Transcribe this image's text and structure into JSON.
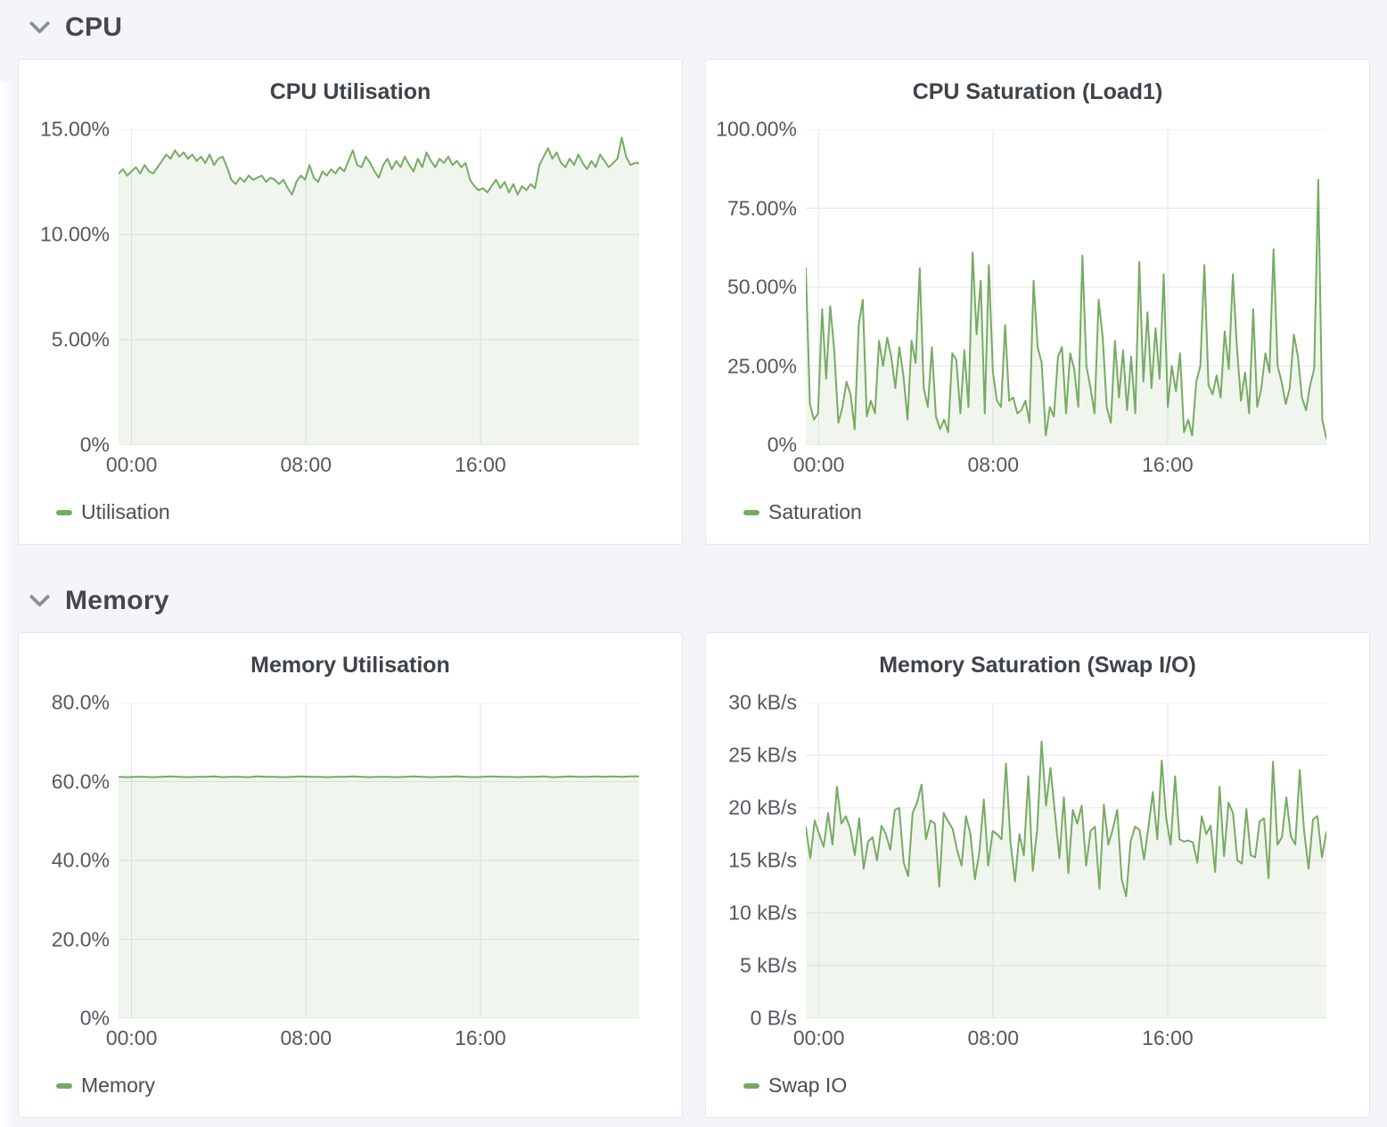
{
  "colors": {
    "page_bg": "#f4f5f9",
    "panel_bg": "#ffffff",
    "panel_border": "#e3e6ec",
    "line": "#77ab63",
    "fill": "rgba(119,171,99,0.11)",
    "grid": "#e4e6e9",
    "title_text": "#3e434b",
    "tick_text": "#54585f",
    "section_text": "#44484e",
    "legend_text": "#4a4e54",
    "chevron": "#8b9097"
  },
  "sections": [
    {
      "title": "CPU",
      "collapsed": false,
      "panel_indexes": [
        0,
        1
      ]
    },
    {
      "title": "Memory",
      "collapsed": false,
      "panel_indexes": [
        2,
        3
      ]
    }
  ],
  "chart_data": [
    {
      "id": "cpu-utilisation",
      "type": "line",
      "title": "CPU Utilisation",
      "unit": "percent",
      "ylim": [
        0,
        15
      ],
      "grid": true,
      "legend_position": "bottom-left",
      "yticks": [
        {
          "label": "15.00%",
          "value": 15
        },
        {
          "label": "10.00%",
          "value": 10
        },
        {
          "label": "5.00%",
          "value": 5
        },
        {
          "label": "0%",
          "value": 0
        }
      ],
      "xticks": [
        {
          "label": "00:00",
          "f": 0.025
        },
        {
          "label": "08:00",
          "f": 0.36
        },
        {
          "label": "16:00",
          "f": 0.695
        }
      ],
      "x_range": "00:00 to ~24:00 (24 h window)",
      "series": [
        {
          "name": "Utilisation",
          "values": [
            12.9,
            13.1,
            12.8,
            13.0,
            13.2,
            12.9,
            13.3,
            13.0,
            12.9,
            13.2,
            13.5,
            13.8,
            13.6,
            14.0,
            13.7,
            13.9,
            13.6,
            13.8,
            13.5,
            13.7,
            13.4,
            13.8,
            13.3,
            13.6,
            13.7,
            13.2,
            12.6,
            12.4,
            12.7,
            12.5,
            12.8,
            12.6,
            12.7,
            12.8,
            12.5,
            12.7,
            12.6,
            12.4,
            12.6,
            12.2,
            11.9,
            12.5,
            12.8,
            12.6,
            13.3,
            12.7,
            12.5,
            13.0,
            12.8,
            13.1,
            12.9,
            13.2,
            13.0,
            13.5,
            14.0,
            13.3,
            13.2,
            13.7,
            13.4,
            13.0,
            12.7,
            13.3,
            13.6,
            13.1,
            13.5,
            13.2,
            13.7,
            13.3,
            13.0,
            13.6,
            13.2,
            13.9,
            13.5,
            13.2,
            13.6,
            13.4,
            13.7,
            13.3,
            13.5,
            13.2,
            13.4,
            12.6,
            12.3,
            12.1,
            12.2,
            12.0,
            12.3,
            12.6,
            12.2,
            12.5,
            12.0,
            12.4,
            11.9,
            12.3,
            12.1,
            12.4,
            12.2,
            13.3,
            13.7,
            14.1,
            13.6,
            13.9,
            13.4,
            13.2,
            13.6,
            13.3,
            13.8,
            13.4,
            13.1,
            13.5,
            13.2,
            13.8,
            13.5,
            13.2,
            13.4,
            13.6,
            14.6,
            13.7,
            13.3,
            13.4,
            13.4
          ]
        }
      ]
    },
    {
      "id": "cpu-saturation",
      "type": "line",
      "title": "CPU Saturation (Load1)",
      "unit": "percent",
      "ylim": [
        0,
        100
      ],
      "grid": true,
      "legend_position": "bottom-left",
      "yticks": [
        {
          "label": "100.00%",
          "value": 100
        },
        {
          "label": "75.00%",
          "value": 75
        },
        {
          "label": "50.00%",
          "value": 50
        },
        {
          "label": "25.00%",
          "value": 25
        },
        {
          "label": "0%",
          "value": 0
        }
      ],
      "xticks": [
        {
          "label": "00:00",
          "f": 0.025
        },
        {
          "label": "08:00",
          "f": 0.36
        },
        {
          "label": "16:00",
          "f": 0.695
        }
      ],
      "x_range": "00:00 to ~24:00 (24 h window)",
      "series": [
        {
          "name": "Saturation",
          "values": [
            56,
            13,
            8,
            10,
            43,
            21,
            44,
            30,
            7,
            12,
            20,
            16,
            5,
            38,
            46,
            9,
            14,
            10,
            33,
            25,
            34,
            28,
            18,
            31,
            22,
            8,
            33,
            26,
            56,
            18,
            12,
            31,
            9,
            5,
            8,
            4,
            29,
            27,
            10,
            30,
            12,
            61,
            35,
            52,
            10,
            57,
            23,
            14,
            12,
            38,
            14,
            15,
            10,
            11,
            14,
            7,
            52,
            31,
            26,
            3,
            12,
            9,
            28,
            31,
            10,
            29,
            24,
            12,
            60,
            25,
            18,
            10,
            46,
            34,
            12,
            7,
            33,
            15,
            30,
            11,
            28,
            10,
            58,
            20,
            42,
            18,
            37,
            21,
            54,
            12,
            25,
            17,
            29,
            4,
            8,
            3,
            20,
            25,
            57,
            19,
            16,
            22,
            15,
            36,
            24,
            54,
            31,
            14,
            23,
            10,
            43,
            12,
            18,
            29,
            23,
            62,
            25,
            20,
            13,
            18,
            35,
            28,
            15,
            11,
            19,
            24,
            84,
            8,
            2
          ]
        }
      ]
    },
    {
      "id": "memory-utilisation",
      "type": "line",
      "title": "Memory Utilisation",
      "unit": "percent",
      "ylim": [
        0,
        80
      ],
      "grid": true,
      "legend_position": "bottom-left",
      "yticks": [
        {
          "label": "80.0%",
          "value": 80
        },
        {
          "label": "60.0%",
          "value": 60
        },
        {
          "label": "40.0%",
          "value": 40
        },
        {
          "label": "20.0%",
          "value": 20
        },
        {
          "label": "0%",
          "value": 0
        }
      ],
      "xticks": [
        {
          "label": "00:00",
          "f": 0.025
        },
        {
          "label": "08:00",
          "f": 0.36
        },
        {
          "label": "16:00",
          "f": 0.695
        }
      ],
      "x_range": "00:00 to ~24:00 (24 h window)",
      "series": [
        {
          "name": "Memory",
          "values": [
            61.2,
            61.1,
            61.2,
            61.2,
            61.1,
            61.2,
            61.3,
            61.2,
            61.1,
            61.2,
            61.2,
            61.3,
            61.1,
            61.2,
            61.2,
            61.1,
            61.3,
            61.2,
            61.2,
            61.1,
            61.2,
            61.3,
            61.2,
            61.2,
            61.1,
            61.2,
            61.2,
            61.3,
            61.2,
            61.1,
            61.2,
            61.2,
            61.1,
            61.2,
            61.3,
            61.2,
            61.1,
            61.2,
            61.2,
            61.3,
            61.2,
            61.1,
            61.2,
            61.3,
            61.2,
            61.2,
            61.1,
            61.2,
            61.2,
            61.3,
            61.1,
            61.2,
            61.3,
            61.2,
            61.2,
            61.3,
            61.2,
            61.3,
            61.2,
            61.3,
            61.3
          ]
        }
      ]
    },
    {
      "id": "memory-saturation",
      "type": "line",
      "title": "Memory Saturation (Swap I/O)",
      "unit": "kB/s",
      "ylim": [
        0,
        30
      ],
      "grid": true,
      "legend_position": "bottom-left",
      "yticks": [
        {
          "label": "30 kB/s",
          "value": 30
        },
        {
          "label": "25 kB/s",
          "value": 25
        },
        {
          "label": "20 kB/s",
          "value": 20
        },
        {
          "label": "15 kB/s",
          "value": 15
        },
        {
          "label": "10 kB/s",
          "value": 10
        },
        {
          "label": "5 kB/s",
          "value": 5
        },
        {
          "label": "0 B/s",
          "value": 0
        }
      ],
      "xticks": [
        {
          "label": "00:00",
          "f": 0.025
        },
        {
          "label": "08:00",
          "f": 0.36
        },
        {
          "label": "16:00",
          "f": 0.695
        }
      ],
      "x_range": "00:00 to ~24:00 (24 h window)",
      "series": [
        {
          "name": "Swap IO",
          "values": [
            18.2,
            15.2,
            18.8,
            17.5,
            16.3,
            19.5,
            16.5,
            22.0,
            18.5,
            19.2,
            18.0,
            15.5,
            19.0,
            14.2,
            16.8,
            17.2,
            15.0,
            18.3,
            17.5,
            16.0,
            19.8,
            20.0,
            14.8,
            13.5,
            19.5,
            20.5,
            22.2,
            17.0,
            18.8,
            18.5,
            12.5,
            19.5,
            18.7,
            18.0,
            16.0,
            14.5,
            19.2,
            17.5,
            13.2,
            15.8,
            20.8,
            14.5,
            17.8,
            17.5,
            17.0,
            24.2,
            16.8,
            13.0,
            17.5,
            15.5,
            23.0,
            14.0,
            18.0,
            26.3,
            20.2,
            23.8,
            19.5,
            15.2,
            21.0,
            13.8,
            19.8,
            18.5,
            20.2,
            14.5,
            17.8,
            18.2,
            12.3,
            20.3,
            16.5,
            18.0,
            19.8,
            13.2,
            11.6,
            16.8,
            18.2,
            17.9,
            15.1,
            18.1,
            21.5,
            17.0,
            24.5,
            19.0,
            16.5,
            23.0,
            17.0,
            16.8,
            16.9,
            16.7,
            14.8,
            19.2,
            17.5,
            18.3,
            13.9,
            22.0,
            15.4,
            20.5,
            19.5,
            15.0,
            14.7,
            19.9,
            15.5,
            15.3,
            18.7,
            19.0,
            13.3,
            24.4,
            16.5,
            17.2,
            21.0,
            17.3,
            16.5,
            23.6,
            17.8,
            14.2,
            18.9,
            19.2,
            15.3,
            17.7
          ]
        }
      ]
    }
  ]
}
